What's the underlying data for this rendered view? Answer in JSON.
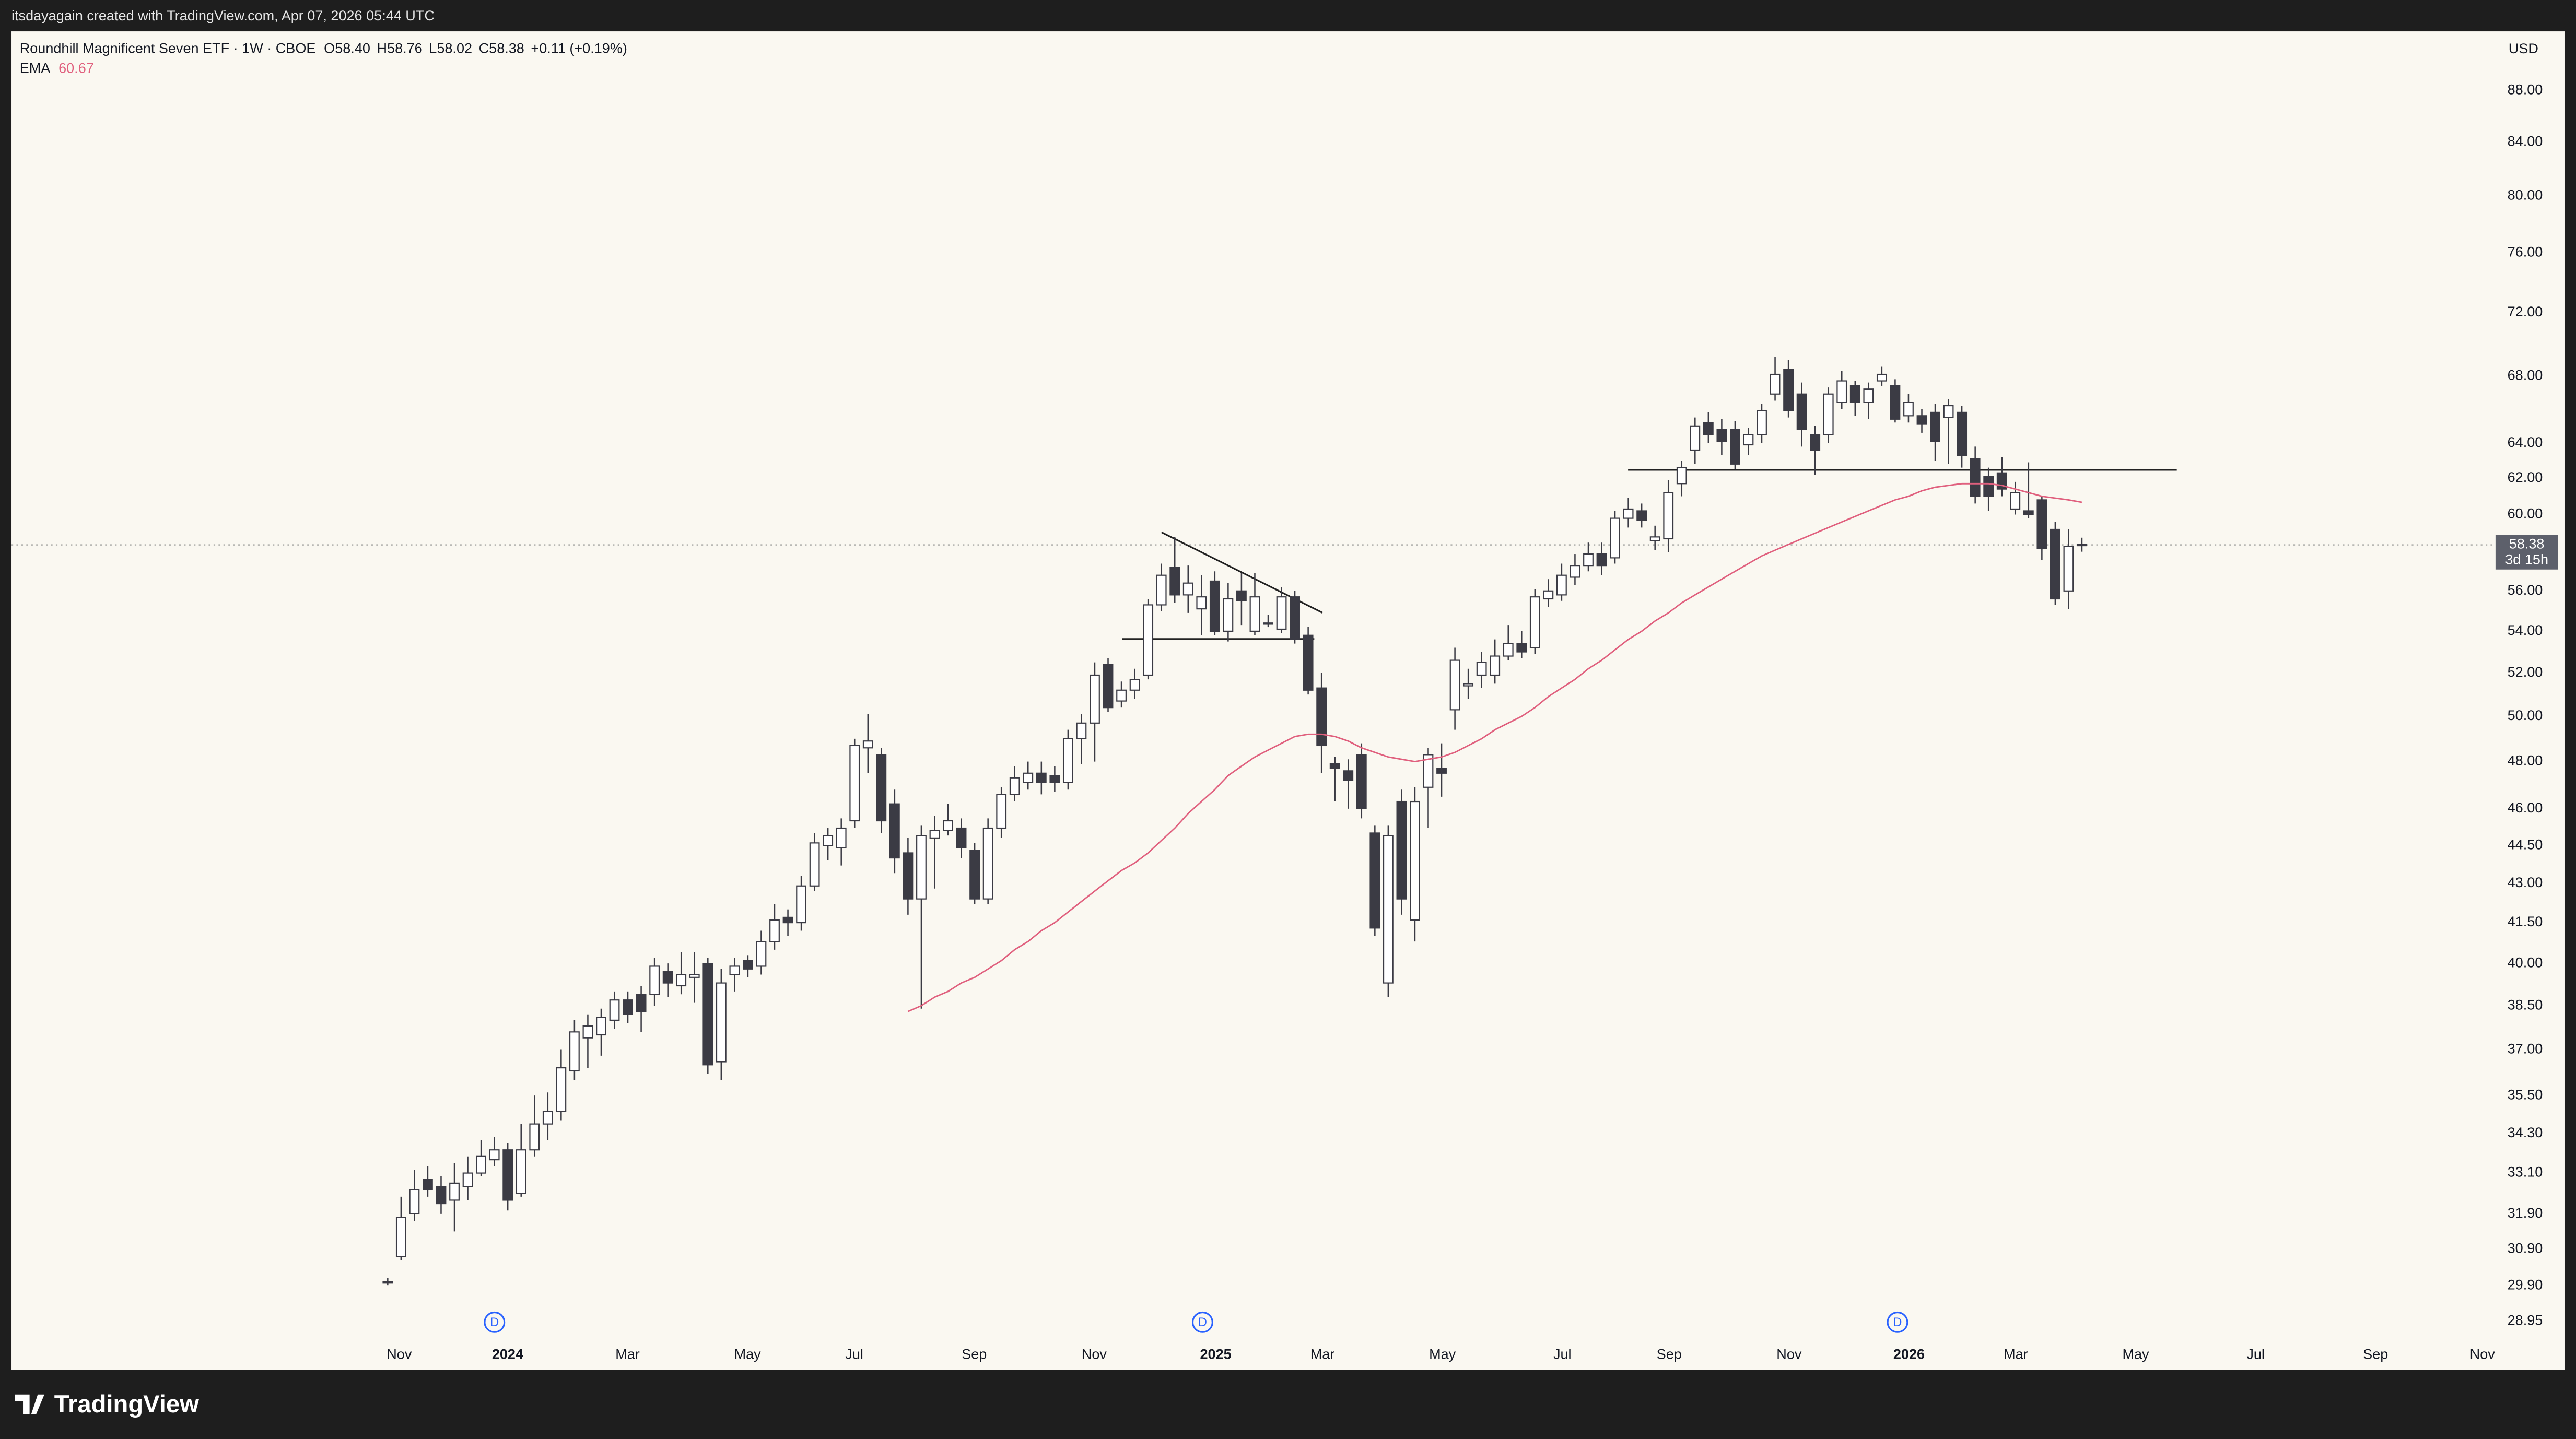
{
  "page": {
    "attribution": "itsdayagain created with TradingView.com, Apr 07, 2026 05:44 UTC",
    "logo": "TradingView"
  },
  "chart_data": {
    "type": "candlestick",
    "title": "Roundhill Magnificent Seven ETF · 1W · CBOE",
    "ohlc_legend": [
      {
        "key": "O",
        "text": "58.40"
      },
      {
        "key": "H",
        "text": "58.76"
      },
      {
        "key": "L",
        "text": "58.02"
      },
      {
        "key": "C",
        "text": "58.38"
      }
    ],
    "change": "+0.11 (+0.19%)",
    "currency": "USD",
    "countdown": "3d 15h",
    "dividend_markers": [
      "D",
      "D",
      "D"
    ],
    "xlabels": [
      "Nov",
      "2024",
      "Mar",
      "May",
      "Jul",
      "Sep",
      "Nov",
      "2025",
      "Mar",
      "May",
      "Jul",
      "Sep",
      "Nov",
      "2026",
      "Mar",
      "May",
      "Jul",
      "Sep",
      "Nov"
    ],
    "log_scale": true,
    "grid": false,
    "up_color": "#ffffff",
    "down_color": "#3b3b44",
    "ylim": [
      28.5,
      92.7
    ],
    "yticks": [
      {
        "value": 88,
        "label": "88.00"
      },
      {
        "value": 84,
        "label": "84.00"
      },
      {
        "value": 80,
        "label": "80.00"
      },
      {
        "value": 76,
        "label": "76.00"
      },
      {
        "value": 72,
        "label": "72.00"
      },
      {
        "value": 68,
        "label": "68.00"
      },
      {
        "value": 64,
        "label": "64.00"
      },
      {
        "value": 62,
        "label": "62.00"
      },
      {
        "value": 60,
        "label": "60.00"
      },
      {
        "value": 56,
        "label": "56.00"
      },
      {
        "value": 54,
        "label": "54.00"
      },
      {
        "value": 52,
        "label": "52.00"
      },
      {
        "value": 50,
        "label": "50.00"
      },
      {
        "value": 48,
        "label": "48.00"
      },
      {
        "value": 46,
        "label": "46.00"
      },
      {
        "value": 44.5,
        "label": "44.50"
      },
      {
        "value": 43,
        "label": "43.00"
      },
      {
        "value": 41.5,
        "label": "41.50"
      },
      {
        "value": 40,
        "label": "40.00"
      },
      {
        "value": 38.5,
        "label": "38.50"
      },
      {
        "value": 37,
        "label": "37.00"
      },
      {
        "value": 35.5,
        "label": "35.50"
      },
      {
        "value": 34.3,
        "label": "34.30"
      },
      {
        "value": 33.1,
        "label": "33.10"
      },
      {
        "value": 31.9,
        "label": "31.90"
      },
      {
        "value": 30.9,
        "label": "30.90"
      },
      {
        "value": 29.9,
        "label": "29.90"
      },
      {
        "value": 28.95,
        "label": "28.95"
      }
    ],
    "open": [
      30.0,
      30.7,
      31.9,
      32.9,
      32.7,
      32.3,
      32.7,
      33.1,
      33.5,
      33.8,
      32.5,
      33.8,
      34.6,
      35.0,
      36.3,
      37.4,
      37.5,
      38.0,
      38.7,
      38.9,
      38.9,
      39.7,
      39.2,
      39.5,
      40.0,
      36.6,
      39.6,
      40.1,
      39.9,
      40.8,
      41.7,
      41.5,
      42.9,
      44.5,
      44.4,
      45.5,
      48.6,
      48.3,
      46.2,
      44.2,
      42.4,
      44.8,
      45.1,
      45.2,
      44.3,
      42.4,
      45.2,
      46.6,
      47.1,
      47.5,
      47.4,
      47.1,
      49.0,
      49.7,
      52.4,
      50.7,
      51.2,
      51.9,
      55.3,
      57.2,
      55.8,
      55.1,
      56.5,
      54.0,
      56.0,
      54.0,
      54.4,
      54.1,
      55.7,
      53.8,
      51.3,
      47.9,
      47.6,
      48.3,
      45.0,
      39.3,
      46.3,
      41.6,
      46.9,
      47.7,
      50.3,
      51.4,
      51.9,
      51.9,
      52.8,
      53.4,
      53.2,
      55.6,
      55.8,
      56.7,
      57.3,
      57.9,
      57.7,
      59.8,
      60.2,
      58.6,
      58.7,
      61.7,
      63.6,
      65.2,
      64.8,
      64.8,
      63.9,
      64.5,
      66.9,
      68.4,
      66.9,
      64.5,
      64.5,
      66.4,
      67.4,
      66.4,
      67.7,
      67.4,
      65.6,
      65.6,
      65.8,
      65.5,
      65.8,
      63.1,
      62.1,
      62.3,
      60.3,
      60.2,
      60.8,
      59.2,
      56.0,
      58.4
    ],
    "high": [
      30.1,
      32.4,
      33.2,
      33.3,
      33.0,
      33.4,
      33.6,
      34.1,
      34.2,
      34.0,
      34.6,
      35.5,
      35.6,
      37.0,
      38.0,
      38.2,
      38.4,
      39.0,
      39.0,
      39.2,
      40.2,
      40.0,
      40.4,
      40.4,
      40.2,
      39.8,
      40.2,
      40.3,
      41.2,
      42.2,
      42.0,
      43.3,
      45.0,
      45.2,
      45.6,
      49.0,
      50.1,
      48.6,
      46.8,
      44.8,
      45.3,
      45.7,
      46.2,
      45.6,
      44.6,
      45.6,
      46.9,
      47.8,
      48.0,
      48.0,
      47.8,
      49.4,
      50.1,
      52.5,
      52.7,
      51.6,
      52.2,
      55.6,
      57.4,
      58.8,
      57.3,
      56.8,
      57.0,
      56.4,
      56.9,
      56.9,
      54.8,
      56.2,
      56.0,
      54.2,
      52.0,
      48.2,
      48.1,
      48.8,
      45.3,
      45.3,
      46.8,
      46.9,
      48.6,
      48.8,
      53.2,
      52.2,
      53.0,
      53.6,
      54.3,
      54.0,
      56.1,
      56.6,
      57.4,
      57.9,
      58.5,
      58.5,
      60.2,
      60.9,
      60.6,
      59.4,
      61.9,
      63.0,
      65.5,
      65.8,
      65.4,
      65.3,
      64.9,
      66.3,
      69.2,
      69.0,
      67.6,
      65.0,
      67.3,
      68.3,
      67.7,
      67.6,
      68.6,
      67.8,
      66.9,
      66.0,
      66.3,
      66.6,
      66.2,
      63.8,
      62.6,
      63.2,
      61.8,
      62.9,
      61.0,
      59.6,
      59.2,
      58.76
    ],
    "low": [
      29.9,
      30.6,
      31.7,
      32.4,
      31.9,
      31.4,
      32.3,
      33.0,
      33.3,
      32.0,
      32.4,
      33.6,
      34.1,
      34.7,
      36.0,
      36.4,
      36.8,
      37.7,
      37.9,
      37.6,
      38.5,
      38.8,
      38.9,
      38.6,
      36.2,
      36.0,
      39.0,
      39.5,
      39.6,
      40.5,
      41.0,
      41.2,
      42.7,
      43.9,
      43.7,
      45.2,
      47.5,
      45.0,
      43.4,
      41.8,
      38.4,
      42.8,
      44.9,
      44.0,
      42.2,
      42.2,
      44.8,
      46.3,
      46.8,
      46.6,
      46.7,
      46.8,
      47.9,
      48.0,
      50.2,
      50.4,
      50.8,
      51.7,
      55.0,
      55.4,
      54.9,
      53.8,
      53.8,
      53.5,
      54.3,
      53.8,
      54.2,
      53.9,
      53.4,
      51.0,
      47.5,
      46.3,
      46.0,
      45.6,
      41.0,
      38.8,
      41.8,
      40.8,
      45.2,
      46.5,
      49.4,
      50.8,
      51.3,
      51.5,
      52.6,
      52.7,
      52.9,
      55.2,
      55.5,
      56.3,
      57.0,
      56.8,
      57.4,
      59.3,
      59.3,
      58.1,
      58.0,
      61.0,
      62.8,
      64.0,
      63.3,
      62.5,
      63.3,
      64.0,
      66.5,
      65.5,
      63.8,
      62.2,
      64.0,
      66.0,
      65.6,
      65.4,
      67.4,
      65.2,
      65.2,
      64.6,
      63.0,
      62.8,
      62.6,
      60.6,
      60.2,
      61.0,
      60.0,
      59.8,
      57.6,
      55.3,
      55.1,
      58.02
    ],
    "close": [
      30.0,
      31.8,
      32.6,
      32.6,
      32.2,
      32.8,
      33.1,
      33.6,
      33.8,
      32.3,
      33.8,
      34.6,
      35.0,
      36.4,
      37.6,
      37.8,
      38.1,
      38.7,
      38.2,
      38.3,
      39.9,
      39.3,
      39.6,
      39.6,
      36.5,
      39.3,
      39.9,
      39.8,
      40.8,
      41.6,
      41.5,
      42.9,
      44.6,
      44.9,
      45.2,
      48.7,
      48.9,
      45.5,
      44.0,
      42.4,
      44.9,
      45.1,
      45.5,
      44.4,
      42.4,
      45.2,
      46.6,
      47.3,
      47.5,
      47.1,
      47.1,
      49.0,
      49.7,
      51.9,
      50.4,
      51.2,
      51.7,
      55.3,
      56.8,
      55.8,
      56.4,
      55.7,
      54.0,
      55.6,
      55.5,
      55.7,
      54.4,
      55.7,
      53.6,
      51.2,
      48.7,
      47.7,
      47.2,
      46.0,
      41.3,
      44.9,
      42.4,
      46.3,
      48.3,
      47.5,
      52.6,
      51.5,
      52.5,
      52.8,
      53.4,
      53.0,
      55.7,
      56.0,
      56.8,
      57.3,
      57.9,
      57.3,
      59.8,
      60.3,
      59.7,
      58.8,
      61.2,
      62.6,
      65.0,
      64.5,
      64.1,
      62.8,
      64.5,
      65.9,
      68.1,
      65.9,
      64.8,
      63.6,
      66.9,
      67.7,
      66.4,
      67.2,
      68.1,
      65.4,
      66.4,
      65.1,
      64.1,
      66.2,
      63.3,
      61.0,
      61.0,
      61.4,
      61.2,
      60.0,
      58.2,
      55.6,
      58.3,
      58.38
    ],
    "ema": {
      "name": "EMA",
      "color": "#e0607e",
      "values": [
        null,
        null,
        null,
        null,
        null,
        null,
        null,
        null,
        null,
        null,
        null,
        null,
        null,
        null,
        null,
        null,
        null,
        null,
        null,
        null,
        null,
        null,
        null,
        null,
        null,
        null,
        null,
        null,
        null,
        null,
        null,
        null,
        null,
        null,
        null,
        null,
        null,
        null,
        null,
        38.3,
        38.5,
        38.8,
        39.0,
        39.3,
        39.5,
        39.8,
        40.1,
        40.5,
        40.8,
        41.2,
        41.5,
        41.9,
        42.3,
        42.7,
        43.1,
        43.5,
        43.8,
        44.2,
        44.7,
        45.2,
        45.8,
        46.3,
        46.8,
        47.4,
        47.8,
        48.2,
        48.5,
        48.8,
        49.1,
        49.2,
        49.2,
        49.1,
        48.9,
        48.6,
        48.4,
        48.2,
        48.1,
        48.0,
        48.1,
        48.2,
        48.4,
        48.7,
        49.0,
        49.4,
        49.7,
        50.0,
        50.4,
        50.9,
        51.3,
        51.7,
        52.2,
        52.6,
        53.1,
        53.6,
        54.0,
        54.5,
        54.9,
        55.4,
        55.8,
        56.2,
        56.6,
        57.0,
        57.4,
        57.8,
        58.1,
        58.4,
        58.7,
        59.0,
        59.3,
        59.6,
        59.9,
        60.2,
        60.5,
        60.8,
        61.0,
        61.3,
        61.5,
        61.6,
        61.7,
        61.7,
        61.7,
        61.6,
        61.4,
        61.2,
        61.0,
        60.9,
        60.8,
        60.67
      ]
    }
  }
}
